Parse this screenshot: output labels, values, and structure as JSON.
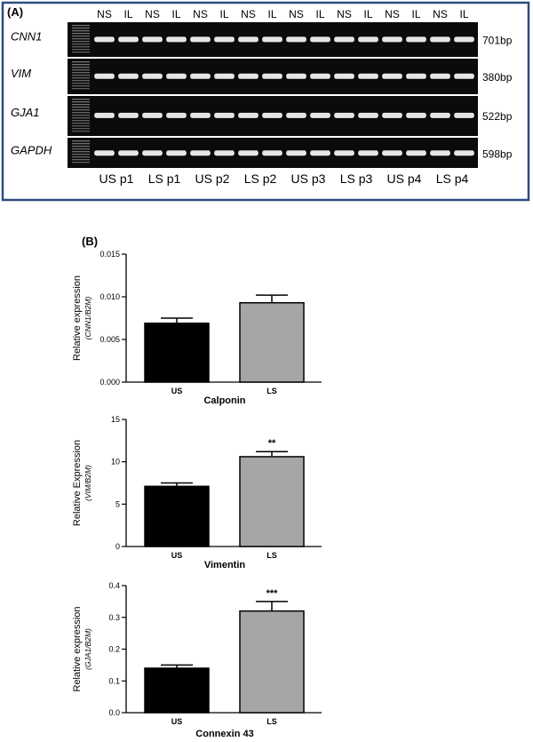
{
  "panel_a": {
    "label": "(A)",
    "lane_headers": [
      "NS",
      "IL",
      "NS",
      "IL",
      "NS",
      "IL",
      "NS",
      "IL",
      "NS",
      "IL",
      "NS",
      "IL",
      "NS",
      "IL",
      "NS",
      "IL"
    ],
    "gels": [
      {
        "gene": "CNN1",
        "size": "701bp"
      },
      {
        "gene": "VIM",
        "size": "380bp"
      },
      {
        "gene": "GJA1",
        "size": "522bp"
      },
      {
        "gene": "GAPDH",
        "size": "598bp"
      }
    ],
    "samples": [
      "US p1",
      "LS p1",
      "US p2",
      "LS p2",
      "US p3",
      "LS p3",
      "US p4",
      "LS p4"
    ],
    "colors": {
      "frame": "#2b4d7e",
      "gel": "#0b0b0b",
      "band": "#e6e6e6"
    }
  },
  "panel_b_label": "(B)",
  "chart_data": [
    {
      "type": "bar",
      "title": "Calponin",
      "ylabel": "Relative expression",
      "ylabel_sub": "(CNN1/B2M)",
      "categories": [
        "US",
        "LS"
      ],
      "values": [
        0.0069,
        0.0093
      ],
      "errors": [
        0.0006,
        0.0009
      ],
      "significance": [
        "",
        ""
      ],
      "ylim": [
        0,
        0.015
      ],
      "yticks": [
        "0.000",
        "0.005",
        "0.010",
        "0.015"
      ],
      "ytick_values": [
        0,
        0.005,
        0.01,
        0.015
      ],
      "colors": [
        "#000000",
        "#a6a6a6"
      ]
    },
    {
      "type": "bar",
      "title": "Vimentin",
      "ylabel": "Relative Expression",
      "ylabel_sub": "(VIM/B2M)",
      "categories": [
        "US",
        "LS"
      ],
      "values": [
        7.1,
        10.6
      ],
      "errors": [
        0.4,
        0.6
      ],
      "significance": [
        "",
        "**"
      ],
      "ylim": [
        0,
        15
      ],
      "yticks": [
        "0",
        "5",
        "10",
        "15"
      ],
      "ytick_values": [
        0,
        5,
        10,
        15
      ],
      "colors": [
        "#000000",
        "#a6a6a6"
      ]
    },
    {
      "type": "bar",
      "title": "Connexin 43",
      "ylabel": "Relative expression",
      "ylabel_sub": "(GJA1/B2M)",
      "categories": [
        "US",
        "LS"
      ],
      "values": [
        0.14,
        0.32
      ],
      "errors": [
        0.01,
        0.03
      ],
      "significance": [
        "",
        "***"
      ],
      "ylim": [
        0,
        0.4
      ],
      "yticks": [
        "0.0",
        "0.1",
        "0.2",
        "0.3",
        "0.4"
      ],
      "ytick_values": [
        0,
        0.1,
        0.2,
        0.3,
        0.4
      ],
      "colors": [
        "#000000",
        "#a6a6a6"
      ]
    }
  ]
}
